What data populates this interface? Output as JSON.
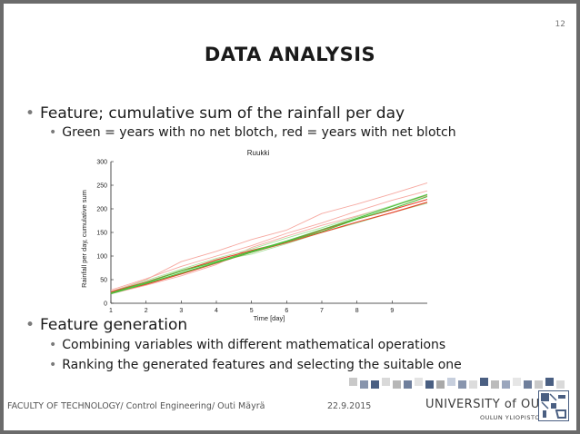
{
  "slide": {
    "number": "12",
    "title": "DATA ANALYSIS"
  },
  "bullets": [
    {
      "level": 1,
      "text": "Feature; cumulative sum of the rainfall per day"
    },
    {
      "level": 2,
      "text": "Green = years with no net blotch, red = years with net blotch"
    },
    {
      "level": 1,
      "text": "Feature generation"
    },
    {
      "level": 2,
      "text": "Combining variables with different mathematical operations"
    },
    {
      "level": 2,
      "text": "Ranking the generated features and selecting the suitable one"
    }
  ],
  "footer": {
    "left": "FACULTY OF TECHNOLOGY/ Control Engineering/ Outi Mäyrä",
    "date": "22.9.2015",
    "university": "UNIVERSITY of OULU",
    "university_sub": "OULUN YLIOPISTO"
  },
  "colors": {
    "red": "#e8412a",
    "green": "#4bbf3a",
    "light_red": "#f6a8a0",
    "light_green": "#a8e29c"
  },
  "chart_data": {
    "type": "line",
    "title": "Ruukki",
    "xlabel": "Time [day]",
    "ylabel": "Rainfall per day, cumulative sum",
    "xlim": [
      1,
      10
    ],
    "ylim": [
      0,
      300
    ],
    "xticks": [
      1,
      2,
      3,
      4,
      5,
      6,
      7,
      8,
      9
    ],
    "yticks": [
      0,
      50,
      100,
      150,
      200,
      250,
      300
    ],
    "grid": false,
    "x": [
      1,
      2,
      3,
      4,
      5,
      6,
      7,
      8,
      9,
      10
    ],
    "series": [
      {
        "color": "red",
        "values": [
          22,
          40,
          62,
          85,
          108,
          128,
          150,
          172,
          192,
          214
        ]
      },
      {
        "color": "red",
        "values": [
          24,
          45,
          68,
          92,
          112,
          130,
          155,
          178,
          198,
          220
        ]
      },
      {
        "color": "green",
        "values": [
          20,
          42,
          64,
          86,
          108,
          130,
          152,
          178,
          200,
          226
        ]
      },
      {
        "color": "green",
        "values": [
          22,
          44,
          68,
          88,
          110,
          132,
          156,
          180,
          205,
          230
        ]
      },
      {
        "color": "light_red",
        "values": [
          25,
          50,
          88,
          110,
          135,
          155,
          190,
          210,
          232,
          255
        ]
      },
      {
        "color": "light_red",
        "values": [
          28,
          52,
          78,
          100,
          122,
          148,
          170,
          195,
          218,
          238
        ]
      },
      {
        "color": "light_red",
        "values": [
          20,
          38,
          58,
          82,
          118,
          142,
          165,
          185,
          206,
          228
        ]
      },
      {
        "color": "light_green",
        "values": [
          22,
          45,
          70,
          90,
          104,
          126,
          150,
          170,
          192,
          212
        ]
      },
      {
        "color": "light_green",
        "values": [
          24,
          48,
          72,
          95,
          115,
          138,
          160,
          183,
          207,
          231
        ]
      }
    ]
  }
}
